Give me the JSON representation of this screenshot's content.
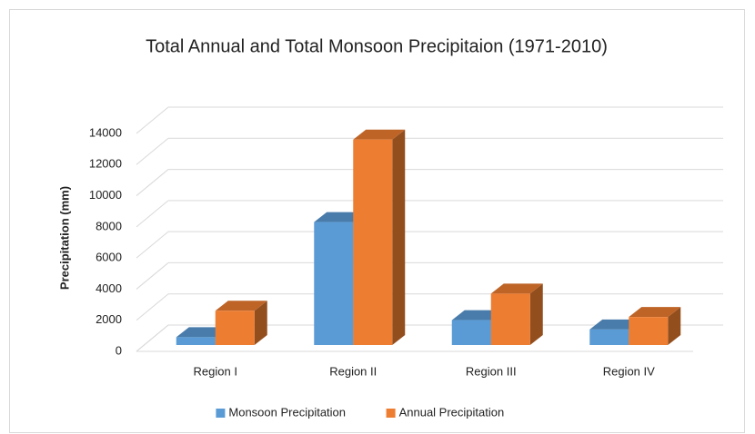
{
  "chart_data": {
    "type": "bar3d",
    "title": "Total Annual and Total Monsoon Precipitaion (1971-2010)",
    "y_label": "Precipitation (mm)",
    "categories": [
      "Region I",
      "Region II",
      "Region III",
      "Region IV"
    ],
    "series": [
      {
        "name": "Monsoon Precipitation",
        "color": "#5b9bd5",
        "values": [
          500,
          7900,
          1600,
          1000
        ]
      },
      {
        "name": "Annual Precipitation",
        "color": "#ed7d31",
        "values": [
          2200,
          13200,
          3300,
          1800
        ]
      }
    ],
    "ylim": [
      0,
      14000
    ],
    "yticks": [
      0,
      2000,
      4000,
      6000,
      8000,
      10000,
      12000,
      14000
    ],
    "grid": true,
    "legend": "bottom"
  }
}
